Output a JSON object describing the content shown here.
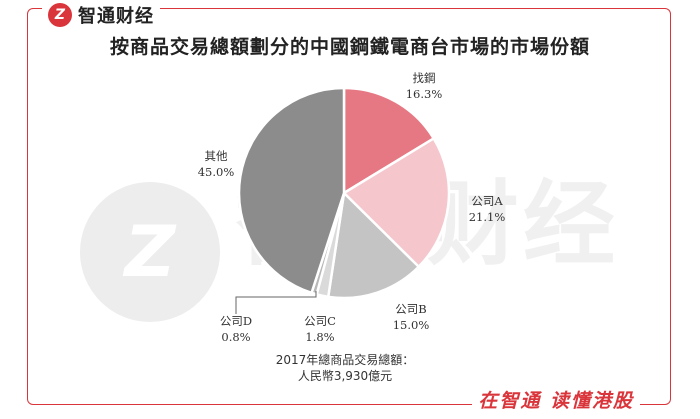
{
  "brand": {
    "logo_glyph": "Z",
    "name": "智通财经"
  },
  "watermark": {
    "logo_glyph": "Z",
    "text": "智通财经"
  },
  "footer_slogan": "在智通  读懂港股",
  "note": {
    "line1": "2017年總商品交易總額：",
    "line2": "人民幣3,930億元"
  },
  "chart_data": {
    "type": "pie",
    "title": "按商品交易總額劃分的中國鋼鐵電商台市場的市場份額",
    "slices": [
      {
        "label": "找鋼",
        "value": 16.3,
        "value_label": "16.3%",
        "color": "#e57883"
      },
      {
        "label": "公司A",
        "value": 21.1,
        "value_label": "21.1%",
        "color": "#f5c6cc"
      },
      {
        "label": "公司B",
        "value": 15.0,
        "value_label": "15.0%",
        "color": "#c4c4c4"
      },
      {
        "label": "公司C",
        "value": 1.8,
        "value_label": "1.8%",
        "color": "#dadada"
      },
      {
        "label": "公司D",
        "value": 0.8,
        "value_label": "0.8%",
        "color": "#b8b8b8"
      },
      {
        "label": "其他",
        "value": 45.0,
        "value_label": "45.0%",
        "color": "#8c8c8c"
      }
    ]
  }
}
